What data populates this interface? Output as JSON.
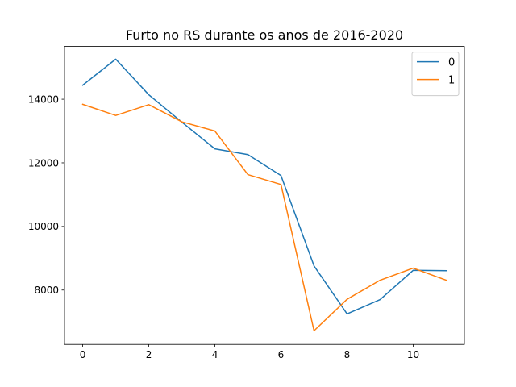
{
  "chart_data": {
    "type": "line",
    "title": "Furto no RS durante os anos de 2016-2020",
    "xlabel": "",
    "ylabel": "",
    "x": [
      0,
      1,
      2,
      3,
      4,
      5,
      6,
      7,
      8,
      9,
      10,
      11
    ],
    "xlim": [
      -0.55,
      11.55
    ],
    "ylim": [
      6290,
      15660
    ],
    "xticks": [
      0,
      2,
      4,
      6,
      8,
      10
    ],
    "yticks": [
      8000,
      10000,
      12000,
      14000
    ],
    "grid": false,
    "legend_position": "top-right",
    "series": [
      {
        "name": "0",
        "color": "#1f77b4",
        "values": [
          14440,
          15260,
          14140,
          13280,
          12440,
          12260,
          11600,
          8760,
          7250,
          7700,
          8620,
          8610
        ]
      },
      {
        "name": "1",
        "color": "#ff7f0e",
        "values": [
          13840,
          13490,
          13830,
          13290,
          13000,
          11630,
          11320,
          6720,
          7710,
          8310,
          8690,
          8310
        ]
      }
    ]
  }
}
